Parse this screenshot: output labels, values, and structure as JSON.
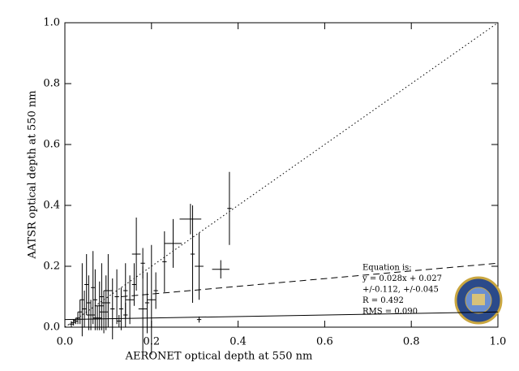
{
  "chart_data": {
    "type": "scatter",
    "xlabel": "AERONET optical depth at 550 nm",
    "ylabel": "AATSR optical depth at 550 nm",
    "xlim": [
      0,
      1
    ],
    "ylim": [
      0,
      1
    ],
    "xticks": [
      {
        "value": 0,
        "label": "0.0"
      },
      0.2,
      0.4,
      0.6,
      0.8,
      {
        "value": 1,
        "label": "1.0"
      }
    ],
    "yticks": [
      {
        "value": 0,
        "label": "0.0"
      },
      0.2,
      0.4,
      0.6,
      0.8,
      {
        "value": 1,
        "label": "1.0"
      }
    ],
    "color": "#000000",
    "x": [
      0.38,
      0.36,
      0.31,
      0.29,
      0.295,
      0.25,
      0.23,
      0.31,
      0.2,
      0.19,
      0.18,
      0.165,
      0.16,
      0.15,
      0.14,
      0.13,
      0.12,
      0.11,
      0.1,
      0.095,
      0.09,
      0.085,
      0.08,
      0.075,
      0.07,
      0.065,
      0.06,
      0.055,
      0.05,
      0.045,
      0.04,
      0.035,
      0.03,
      0.025,
      0.02,
      0.015,
      0.125,
      0.14,
      0.21,
      0.18
    ],
    "values": [
      0.39,
      0.19,
      0.2,
      0.355,
      0.24,
      0.275,
      0.215,
      0.025,
      0.09,
      0.08,
      0.06,
      0.24,
      0.14,
      0.09,
      0.12,
      0.06,
      0.1,
      0.06,
      0.12,
      0.08,
      0.05,
      0.1,
      0.07,
      0.03,
      0.09,
      0.13,
      0.04,
      0.08,
      0.14,
      0.06,
      0.09,
      0.05,
      0.03,
      0.02,
      0.015,
      0.01,
      0.02,
      0.04,
      0.12,
      0.21
    ],
    "x_errors": [
      0.005,
      0.02,
      0.01,
      0.025,
      0.005,
      0.02,
      0.005,
      0.005,
      0.01,
      0.005,
      0.01,
      0.01,
      0.005,
      0.01,
      0.005,
      0.005,
      0.005,
      0.005,
      0.01,
      0.01,
      0.01,
      0.005,
      0.01,
      0.01,
      0.005,
      0.005,
      0.01,
      0.005,
      0.005,
      0.005,
      0.005,
      0.005,
      0.005,
      0.005,
      0.005,
      0.005,
      0.005,
      0.005,
      0.005,
      0.005
    ],
    "errors": [
      0.12,
      0.03,
      0.11,
      0.05,
      0.16,
      0.08,
      0.1,
      0.01,
      0.18,
      0.1,
      0.14,
      0.12,
      0.07,
      0.08,
      0.09,
      0.07,
      0.09,
      0.1,
      0.12,
      0.09,
      0.07,
      0.11,
      0.08,
      0.04,
      0.1,
      0.12,
      0.05,
      0.09,
      0.1,
      0.06,
      0.12,
      0.04,
      0.02,
      0.01,
      0.01,
      0.01,
      0.02,
      0.04,
      0.06,
      0.05
    ],
    "lines": [
      {
        "style": "dotted",
        "x": [
          0,
          1
        ],
        "y": [
          0,
          1
        ]
      },
      {
        "style": "dashed",
        "x": [
          0.13,
          1
        ],
        "y": [
          0.1,
          0.21
        ]
      },
      {
        "style": "solid",
        "x": [
          0,
          1
        ],
        "y": [
          0.025,
          0.05
        ]
      }
    ],
    "annotations": [
      "Equation is:",
      "y = 0.028x + 0.027",
      "+/-0.112, +/-0.045",
      "R = 0.492",
      "RMS = 0.090"
    ]
  }
}
